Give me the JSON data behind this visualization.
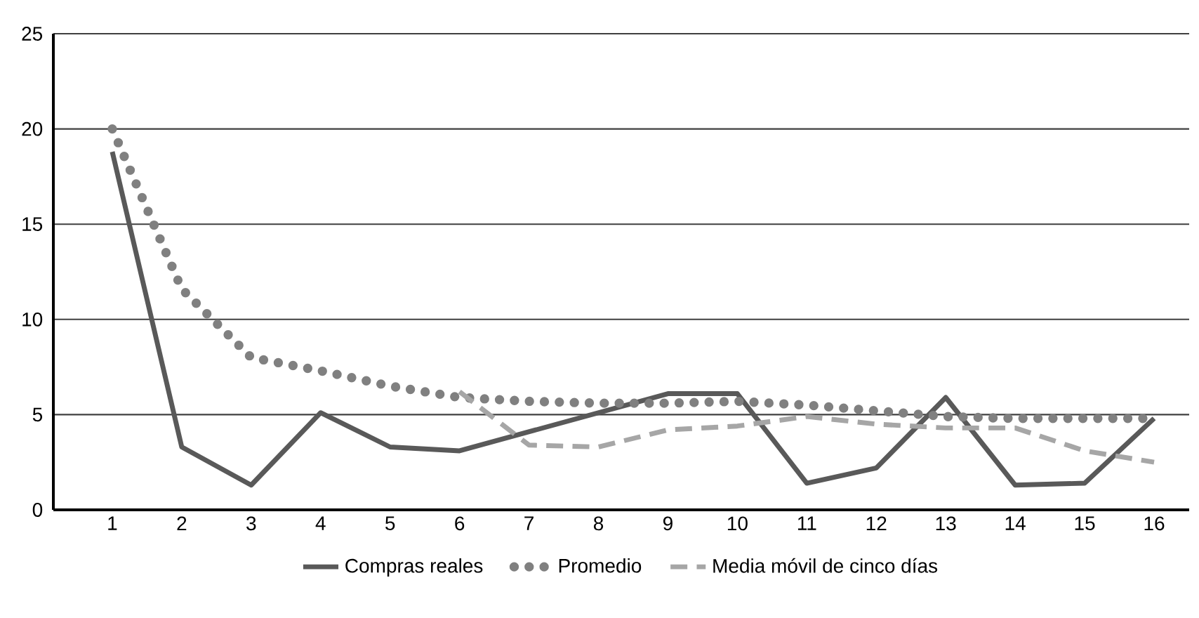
{
  "chart_data": {
    "type": "line",
    "categories": [
      "1",
      "2",
      "3",
      "4",
      "5",
      "6",
      "7",
      "8",
      "9",
      "10",
      "11",
      "12",
      "13",
      "14",
      "15",
      "16"
    ],
    "series": [
      {
        "name": "Compras reales",
        "color": "#595959",
        "line_style": "solid",
        "values": [
          18.8,
          3.3,
          1.3,
          5.1,
          3.3,
          3.1,
          4.1,
          5.1,
          6.1,
          6.1,
          1.4,
          2.2,
          5.9,
          1.3,
          1.4,
          4.8
        ]
      },
      {
        "name": "Promedio",
        "color": "#808080",
        "line_style": "dotted",
        "values": [
          20,
          11.6,
          8.0,
          7.3,
          6.5,
          5.9,
          5.7,
          5.6,
          5.6,
          5.7,
          5.5,
          5.2,
          4.9,
          4.8,
          4.8,
          4.8
        ]
      },
      {
        "name": "Media móvil de cinco días",
        "color": "#a6a6a6",
        "line_style": "dashed",
        "values": [
          null,
          null,
          null,
          null,
          null,
          6.2,
          3.4,
          3.3,
          4.2,
          4.4,
          4.9,
          4.5,
          4.3,
          4.3,
          3.1,
          2.5
        ]
      }
    ],
    "ylim": [
      0,
      25
    ],
    "yticks": [
      0,
      5,
      10,
      15,
      20,
      25
    ],
    "grid": "y",
    "legend": "bottom",
    "marker": "none"
  }
}
